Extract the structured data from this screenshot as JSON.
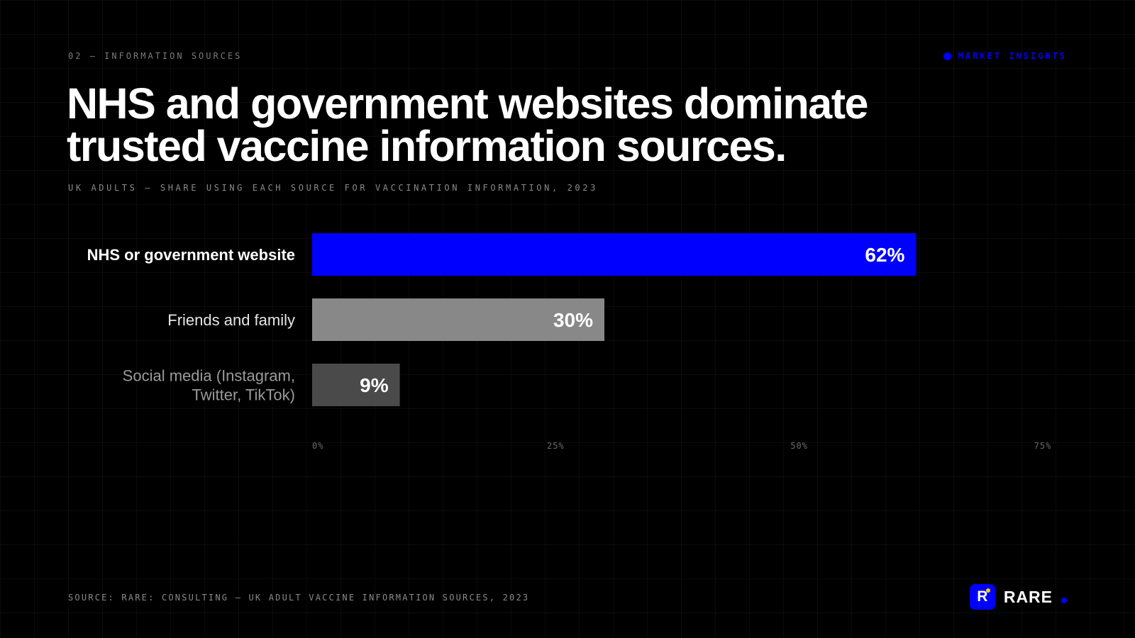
{
  "header": {
    "eyebrow": "02 — INFORMATION SOURCES",
    "tag": "MARKET INSIGHTS",
    "title": "NHS and government websites dominate trusted vaccine information sources.",
    "subtitle": "UK ADULTS — SHARE USING EACH SOURCE FOR VACCINATION INFORMATION, 2023"
  },
  "footer": {
    "source": "SOURCE: RARE: CONSULTING — UK ADULT VACCINE INFORMATION SOURCES, 2023",
    "brand_mark": "R",
    "brand_name": "RARE"
  },
  "colors": {
    "accent": "#0000ff",
    "bar_secondary": "#888888",
    "bar_tertiary": "#4a4a4a",
    "background": "#000000"
  },
  "chart_data": {
    "type": "bar",
    "orientation": "horizontal",
    "categories": [
      "NHS or government website",
      "Friends and family",
      "Social media (Instagram, Twitter, TikTok)"
    ],
    "category_lines": [
      [
        "NHS or government website"
      ],
      [
        "Friends and family"
      ],
      [
        "Social media (Instagram,",
        "Twitter, TikTok)"
      ]
    ],
    "values": [
      62,
      30,
      9
    ],
    "value_labels": [
      "62%",
      "30%",
      "9%"
    ],
    "bar_colors": [
      "#0000ff",
      "#888888",
      "#4a4a4a"
    ],
    "label_colors": [
      "#ffffff",
      "#e6e6e6",
      "#9a9a9a"
    ],
    "xlim": [
      0,
      75
    ],
    "xticks": [
      0,
      25,
      50,
      75
    ],
    "xtick_labels": [
      "0%",
      "25%",
      "50%",
      "75%"
    ],
    "unit": "%",
    "grid": true
  }
}
